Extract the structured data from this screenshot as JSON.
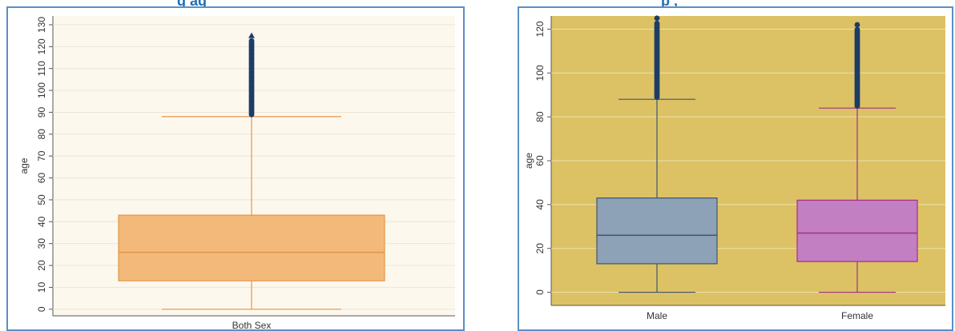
{
  "page": {
    "left_title_fragment": "g     ag",
    "right_title_fragment": "p   ,"
  },
  "chart_data": [
    {
      "type": "box",
      "ylabel": "age",
      "categories": [
        "Both Sex"
      ],
      "yticks": [
        0,
        10,
        20,
        30,
        40,
        50,
        60,
        70,
        80,
        90,
        100,
        110,
        120,
        130
      ],
      "ylim": [
        -3,
        134
      ],
      "grid": true,
      "boxes": [
        {
          "name": "Both Sex",
          "whisker_low": 0,
          "q1": 13,
          "median": 26,
          "q3": 43,
          "whisker_high": 88,
          "outlier_min": 89,
          "outlier_max": 125
        }
      ],
      "colors": {
        "plot_bg": "#fdf8ee",
        "box_fill": "#f2b97a",
        "box_line": "#e5964a",
        "outlier": "#1d3d66",
        "grid": "#eee3d4"
      }
    },
    {
      "type": "box",
      "ylabel": "age",
      "categories": [
        "Male",
        "Female"
      ],
      "yticks": [
        0,
        20,
        40,
        60,
        80,
        100,
        120
      ],
      "ylim": [
        -6,
        126
      ],
      "grid": true,
      "boxes": [
        {
          "name": "Male",
          "whisker_low": 0,
          "q1": 13,
          "median": 26,
          "q3": 43,
          "whisker_high": 88,
          "outlier_min": 89,
          "outlier_max": 125
        },
        {
          "name": "Female",
          "whisker_low": 0,
          "q1": 14,
          "median": 27,
          "q3": 42,
          "whisker_high": 84,
          "outlier_min": 85,
          "outlier_max": 122
        }
      ],
      "colors": {
        "plot_bg": "#dcc264",
        "male_fill": "#8da1b7",
        "male_line": "#3e5670",
        "female_fill": "#c27fc1",
        "female_line": "#a0308a",
        "outlier": "#1d3d66",
        "grid": "#ebe1b0"
      }
    }
  ]
}
